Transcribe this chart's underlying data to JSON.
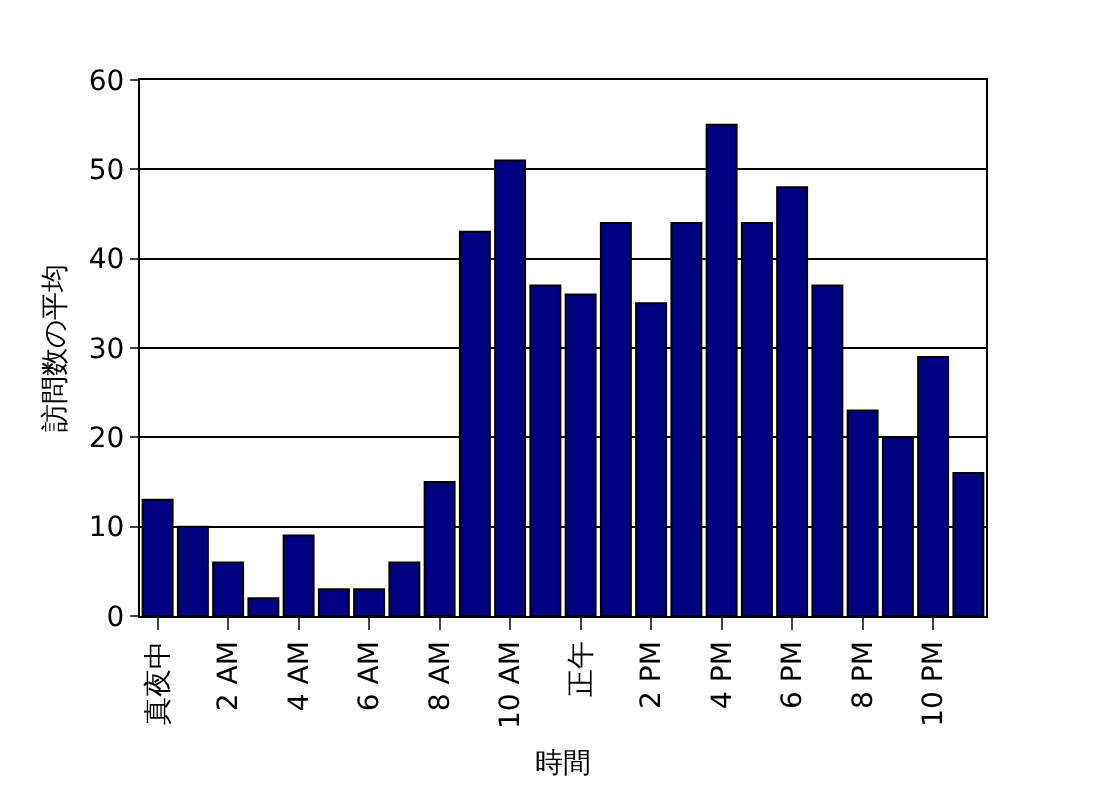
{
  "chart_data": {
    "type": "bar",
    "xlabel": "時間",
    "ylabel": "訪問数の平均",
    "categories": [
      "真夜中",
      null,
      "2 AM",
      null,
      "4 AM",
      null,
      "6 AM",
      null,
      "8 AM",
      null,
      "10 AM",
      null,
      "正午",
      null,
      "2 PM",
      null,
      "4 PM",
      null,
      "6 PM",
      null,
      "8 PM",
      null,
      "10 PM",
      null
    ],
    "values": [
      13,
      10,
      6,
      2,
      9,
      3,
      3,
      6,
      15,
      43,
      51,
      37,
      36,
      44,
      35,
      44,
      55,
      44,
      48,
      37,
      23,
      20,
      29,
      16
    ],
    "color": "#000080",
    "ylim": [
      0,
      60
    ],
    "yticks": [
      0,
      10,
      20,
      30,
      40,
      50,
      60
    ],
    "grid": "y",
    "legend": false
  }
}
